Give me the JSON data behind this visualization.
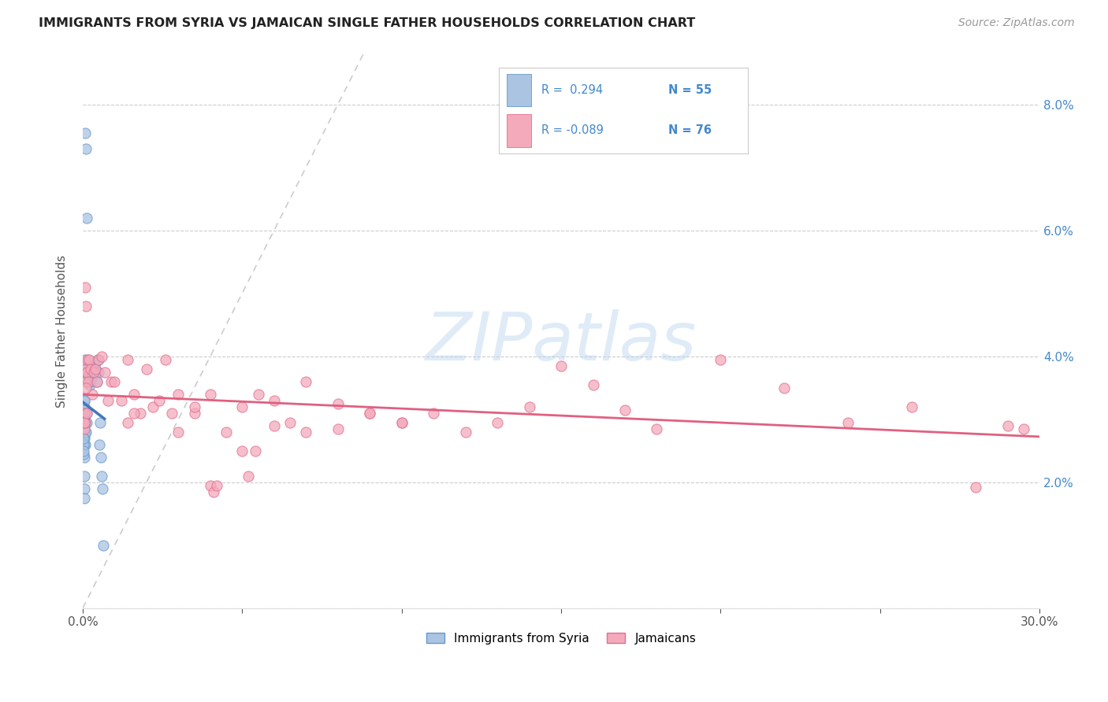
{
  "title": "IMMIGRANTS FROM SYRIA VS JAMAICAN SINGLE FATHER HOUSEHOLDS CORRELATION CHART",
  "source": "Source: ZipAtlas.com",
  "ylabel": "Single Father Households",
  "xlim": [
    0.0,
    0.3
  ],
  "ylim": [
    0.0,
    0.088
  ],
  "xtick_positions": [
    0.0,
    0.05,
    0.1,
    0.15,
    0.2,
    0.25,
    0.3
  ],
  "xtick_labels": [
    "0.0%",
    "",
    "",
    "",
    "",
    "",
    "30.0%"
  ],
  "ytick_positions": [
    0.0,
    0.02,
    0.04,
    0.06,
    0.08
  ],
  "ytick_labels_right": [
    "",
    "2.0%",
    "4.0%",
    "6.0%",
    "8.0%"
  ],
  "color_syria": "#aac4e2",
  "color_syria_edge": "#6699cc",
  "color_jamaica": "#f4aabb",
  "color_jamaica_edge": "#e07090",
  "color_syria_line": "#4477bb",
  "color_jamaica_line": "#e06080",
  "color_diagonal": "#cccccc",
  "background_color": "#ffffff",
  "watermark": "ZIPatlas",
  "legend_color": "#4488cc",
  "syria_x": [
    0.0008,
    0.001,
    0.0012,
    0.0008,
    0.0006,
    0.0006,
    0.0005,
    0.0005,
    0.0005,
    0.0004,
    0.0005,
    0.0005,
    0.0005,
    0.0005,
    0.0005,
    0.0005,
    0.0005,
    0.0005,
    0.0005,
    0.0006,
    0.0006,
    0.0007,
    0.0008,
    0.001,
    0.0012,
    0.0012,
    0.0015,
    0.0018,
    0.002,
    0.0022,
    0.0025,
    0.0028,
    0.003,
    0.0035,
    0.0038,
    0.004,
    0.0042,
    0.0045,
    0.0048,
    0.005,
    0.0052,
    0.0055,
    0.0058,
    0.006,
    0.0062,
    0.0065,
    0.0003,
    0.0003,
    0.0004,
    0.0004,
    0.0004,
    0.0004,
    0.0003,
    0.0003,
    0.0003
  ],
  "syria_y": [
    0.0755,
    0.073,
    0.062,
    0.0395,
    0.03,
    0.033,
    0.0295,
    0.028,
    0.03,
    0.026,
    0.028,
    0.032,
    0.033,
    0.029,
    0.027,
    0.03,
    0.028,
    0.0275,
    0.031,
    0.028,
    0.0315,
    0.028,
    0.026,
    0.028,
    0.0295,
    0.031,
    0.037,
    0.038,
    0.037,
    0.0355,
    0.036,
    0.0365,
    0.037,
    0.0375,
    0.038,
    0.039,
    0.0375,
    0.036,
    0.0395,
    0.0375,
    0.026,
    0.0295,
    0.024,
    0.021,
    0.019,
    0.01,
    0.026,
    0.027,
    0.024,
    0.021,
    0.019,
    0.0175,
    0.03,
    0.0245,
    0.025
  ],
  "jamaica_x": [
    0.0005,
    0.0006,
    0.0007,
    0.0008,
    0.001,
    0.0012,
    0.0015,
    0.0018,
    0.002,
    0.0025,
    0.003,
    0.0035,
    0.004,
    0.0045,
    0.005,
    0.006,
    0.007,
    0.008,
    0.009,
    0.01,
    0.012,
    0.014,
    0.016,
    0.018,
    0.02,
    0.022,
    0.024,
    0.026,
    0.028,
    0.03,
    0.035,
    0.04,
    0.045,
    0.05,
    0.055,
    0.06,
    0.065,
    0.07,
    0.08,
    0.09,
    0.1,
    0.11,
    0.12,
    0.14,
    0.16,
    0.18,
    0.2,
    0.22,
    0.24,
    0.26,
    0.28,
    0.0005,
    0.0007,
    0.0009,
    0.0011,
    0.0013,
    0.05,
    0.052,
    0.054,
    0.15,
    0.17,
    0.03,
    0.035,
    0.13,
    0.06,
    0.07,
    0.08,
    0.09,
    0.1,
    0.29,
    0.295,
    0.014,
    0.016,
    0.04,
    0.041,
    0.042
  ],
  "jamaica_y": [
    0.0285,
    0.031,
    0.0295,
    0.036,
    0.038,
    0.0375,
    0.0395,
    0.036,
    0.0395,
    0.038,
    0.034,
    0.0375,
    0.038,
    0.036,
    0.0395,
    0.04,
    0.0375,
    0.033,
    0.036,
    0.036,
    0.033,
    0.0395,
    0.034,
    0.031,
    0.038,
    0.032,
    0.033,
    0.0395,
    0.031,
    0.034,
    0.031,
    0.034,
    0.028,
    0.032,
    0.034,
    0.033,
    0.0295,
    0.036,
    0.0325,
    0.031,
    0.0295,
    0.031,
    0.028,
    0.032,
    0.0355,
    0.0285,
    0.0395,
    0.035,
    0.0295,
    0.032,
    0.0192,
    0.0295,
    0.051,
    0.035,
    0.048,
    0.031,
    0.025,
    0.021,
    0.025,
    0.0385,
    0.0315,
    0.028,
    0.032,
    0.0295,
    0.029,
    0.028,
    0.0285,
    0.031,
    0.0295,
    0.029,
    0.0285,
    0.0295,
    0.031,
    0.0195,
    0.0185,
    0.0195
  ]
}
